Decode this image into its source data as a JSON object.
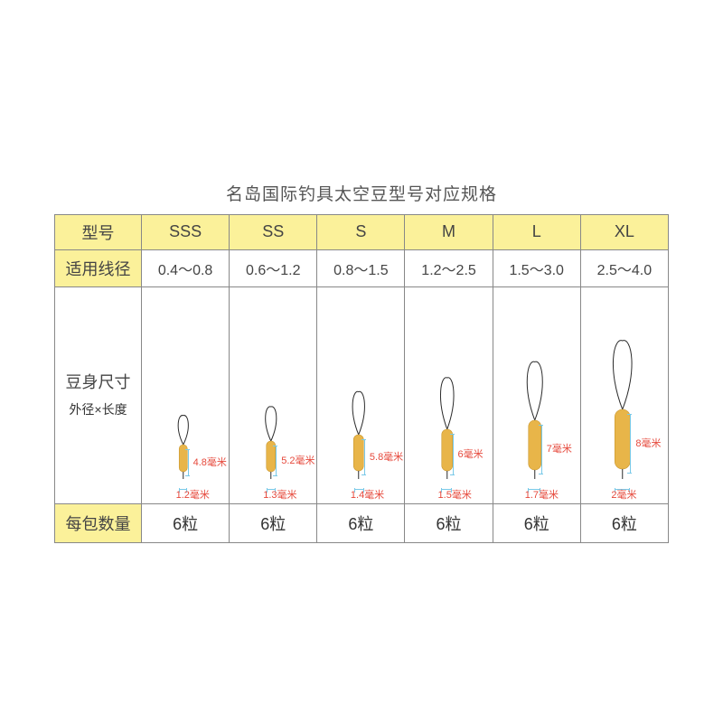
{
  "title": "名岛国际钓具太空豆型号对应规格",
  "headers": {
    "model": "型号",
    "line_diameter": "适用线径",
    "body_size": "豆身尺寸",
    "body_size_sub": "外径×长度",
    "qty_per_pack": "每包数量"
  },
  "qty_unit": "粒",
  "length_unit": "毫米",
  "colors": {
    "header_bg": "#fbf19a",
    "border": "#888888",
    "text": "#444444",
    "dim_label": "#e6483b",
    "bracket": "#79c9e8",
    "bean_fill": "#e8b549",
    "bean_stroke": "#c99730",
    "loop_stroke": "#2b2b2b",
    "background": "#ffffff"
  },
  "sizes": [
    {
      "model": "SSS",
      "line_range": "0.4～0.8",
      "diameter_mm": 1.2,
      "length_mm": 4.8,
      "qty": 6,
      "draw": {
        "bean_w": 9,
        "bean_h": 30,
        "loop_h": 34,
        "tail": 8
      }
    },
    {
      "model": "SS",
      "line_range": "0.6～1.2",
      "diameter_mm": 1.3,
      "length_mm": 5.2,
      "qty": 6,
      "draw": {
        "bean_w": 10,
        "bean_h": 34,
        "loop_h": 40,
        "tail": 8
      }
    },
    {
      "model": "S",
      "line_range": "0.8～1.5",
      "diameter_mm": 1.4,
      "length_mm": 5.8,
      "qty": 6,
      "draw": {
        "bean_w": 11,
        "bean_h": 40,
        "loop_h": 50,
        "tail": 9
      }
    },
    {
      "model": "M",
      "line_range": "1.2～2.5",
      "diameter_mm": 1.5,
      "length_mm": 6.0,
      "qty": 6,
      "draw": {
        "bean_w": 12,
        "bean_h": 46,
        "loop_h": 60,
        "tail": 9
      }
    },
    {
      "model": "L",
      "line_range": "1.5～3.0",
      "diameter_mm": 1.7,
      "length_mm": 7.0,
      "qty": 6,
      "draw": {
        "bean_w": 14,
        "bean_h": 55,
        "loop_h": 68,
        "tail": 10
      }
    },
    {
      "model": "XL",
      "line_range": "2.5～4.0",
      "diameter_mm": 2.0,
      "length_mm": 8.0,
      "qty": 6,
      "draw": {
        "bean_w": 17,
        "bean_h": 66,
        "loop_h": 80,
        "tail": 11
      }
    }
  ]
}
